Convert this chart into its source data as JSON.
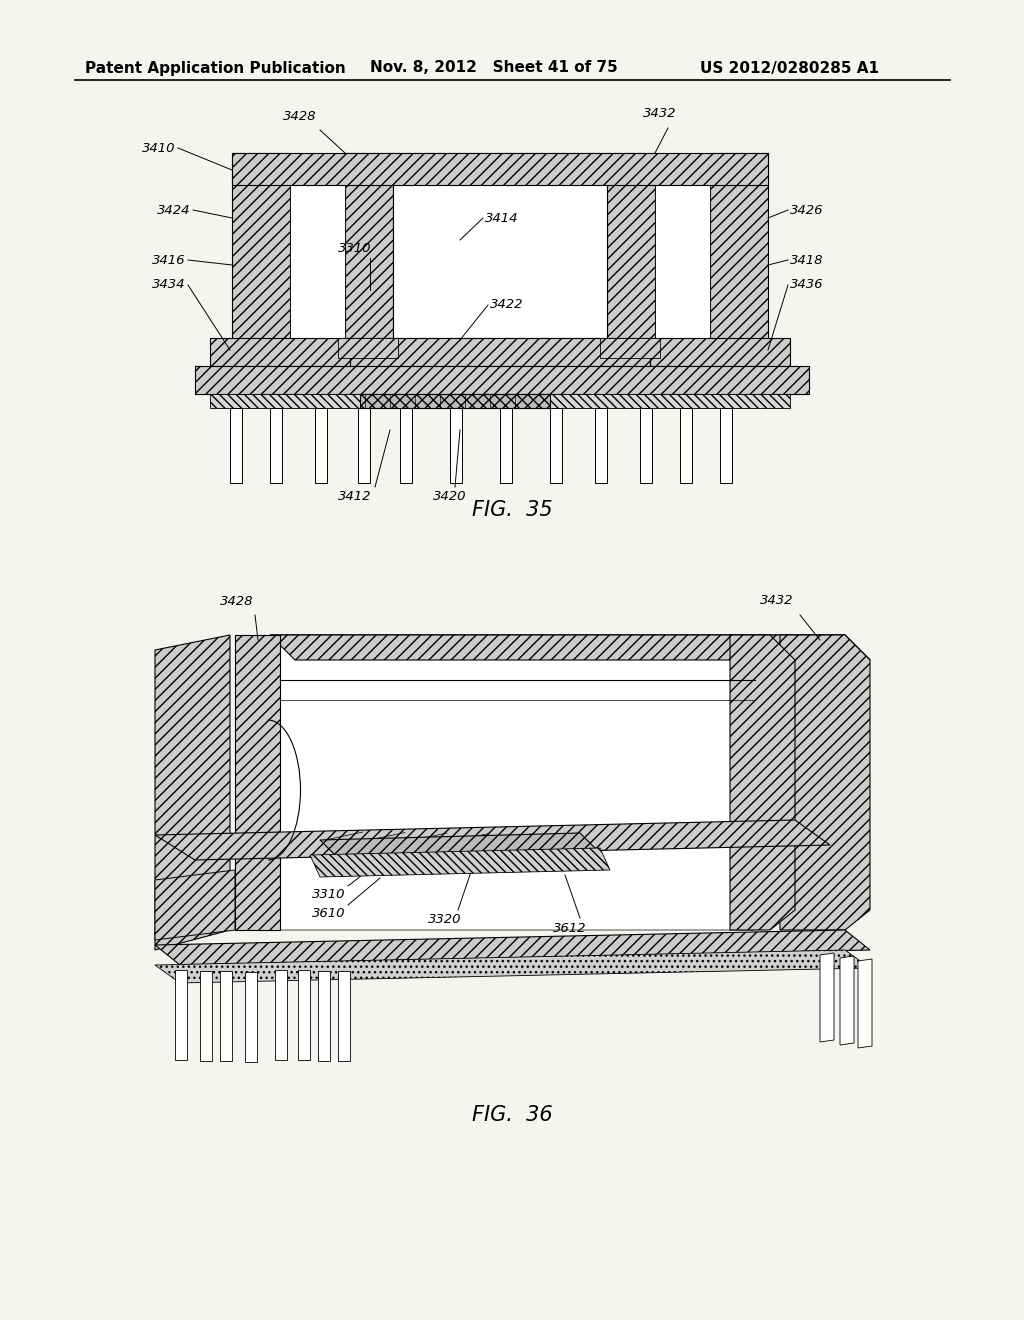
{
  "header_left": "Patent Application Publication",
  "header_center": "Nov. 8, 2012   Sheet 41 of 75",
  "header_right": "US 2012/0280285 A1",
  "fig35_label": "FIG.  35",
  "fig36_label": "FIG.  36",
  "bg_color": "#f5f5f0",
  "header_fontsize": 11,
  "fig_label_fontsize": 15,
  "annotation_fontsize": 9.5
}
